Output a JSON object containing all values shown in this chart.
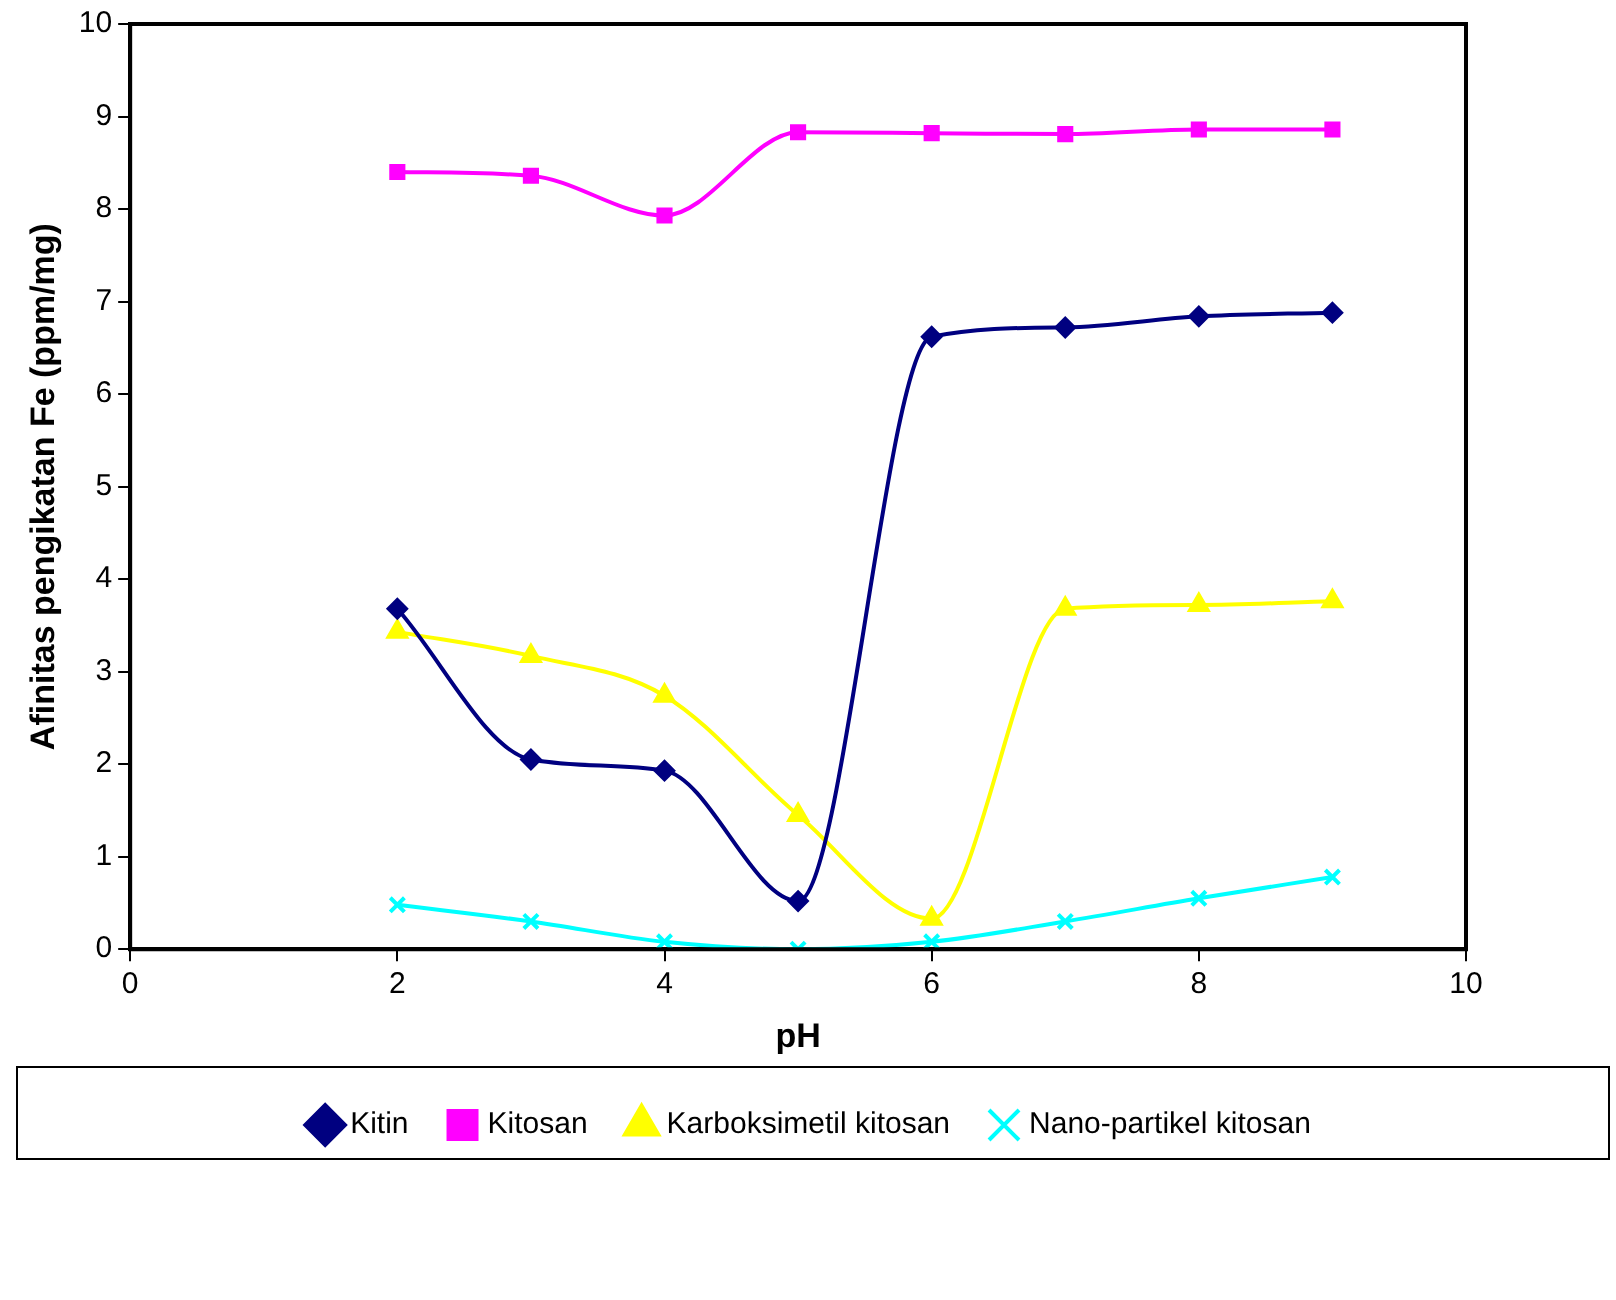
{
  "chart_data": {
    "type": "line",
    "xlabel": "pH",
    "ylabel": "Afinitas pengikatan Fe (ppm/mg)",
    "x": [
      2,
      3,
      4,
      5,
      6,
      7,
      8,
      9
    ],
    "xlim": [
      0,
      10
    ],
    "xticks": [
      0,
      2,
      4,
      6,
      8,
      10
    ],
    "ylim": [
      0,
      10
    ],
    "yticks": [
      0,
      1,
      2,
      3,
      4,
      5,
      6,
      7,
      8,
      9,
      10
    ],
    "grid": false,
    "legend": "bottom",
    "series": [
      {
        "name": "Kitin",
        "color": "#000080",
        "marker": "diamond",
        "values": [
          3.68,
          2.05,
          1.93,
          0.52,
          6.62,
          6.72,
          6.84,
          6.88
        ]
      },
      {
        "name": "Kitosan",
        "color": "#ff00ff",
        "marker": "square",
        "values": [
          8.4,
          8.36,
          7.93,
          8.83,
          8.82,
          8.81,
          8.86,
          8.86
        ]
      },
      {
        "name": "Karboksimetil kitosan",
        "color": "#ffff00",
        "marker": "triangle",
        "values": [
          3.43,
          3.17,
          2.74,
          1.45,
          0.33,
          3.68,
          3.72,
          3.76
        ]
      },
      {
        "name": "Nano-partikel kitosan",
        "color": "#00ffff",
        "marker": "cross",
        "values": [
          0.48,
          0.3,
          0.08,
          0.0,
          0.08,
          0.3,
          0.55,
          0.78
        ]
      }
    ]
  }
}
